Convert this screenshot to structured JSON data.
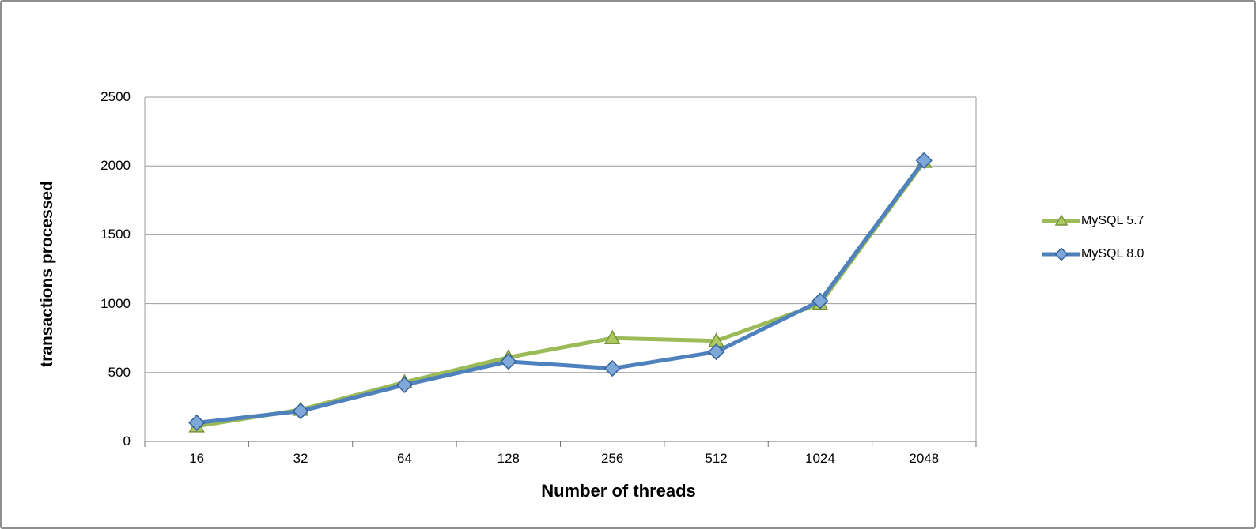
{
  "chart_data": {
    "type": "line",
    "title": "",
    "xlabel": "Number of threads",
    "ylabel": "transactions processed",
    "categories": [
      "16",
      "32",
      "64",
      "128",
      "256",
      "512",
      "1024",
      "2048"
    ],
    "yticks": [
      0,
      500,
      1000,
      1500,
      2000,
      2500
    ],
    "ylim": [
      0,
      2500
    ],
    "grid": true,
    "grid_color": "#9b9b9b",
    "axis_color": "#707070",
    "legend_position": "right",
    "series": [
      {
        "name": "MySQL 5.7",
        "marker": "triangle",
        "color": "#9BBB59",
        "marker_fill": "#ADC95F",
        "marker_stroke": "#77933C",
        "values": [
          110,
          230,
          430,
          610,
          750,
          730,
          1000,
          2030
        ]
      },
      {
        "name": "MySQL 8.0",
        "marker": "diamond",
        "color": "#4F81BD",
        "marker_fill": "#7FA8D9",
        "marker_stroke": "#33619B",
        "values": [
          135,
          220,
          410,
          580,
          530,
          650,
          1020,
          2040
        ]
      }
    ]
  }
}
